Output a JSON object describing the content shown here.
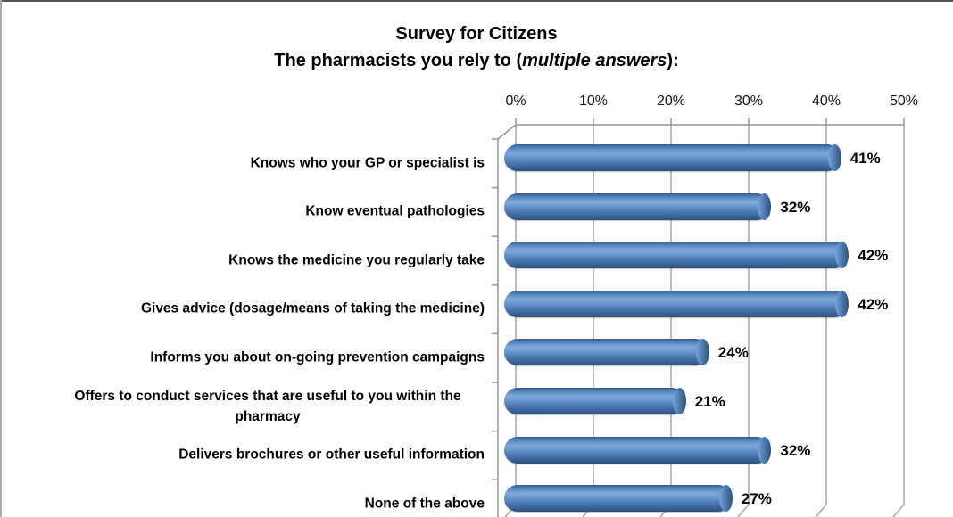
{
  "chart_data": {
    "type": "bar",
    "orientation": "horizontal",
    "style": "3d-cylinder",
    "title_line1": "Survey for Citizens",
    "title_line2": {
      "prefix": "The pharmacists you rely to (",
      "italic": "multiple answers",
      "suffix": "):"
    },
    "categories": [
      "Knows who your GP or specialist is",
      "Know eventual pathologies",
      "Knows the medicine you regularly take",
      "Gives advice (dosage/means of taking the medicine)",
      "Informs you about on-going prevention campaigns",
      "Offers to conduct services that are useful to you within the pharmacy",
      "Delivers brochures or other useful information",
      "None of the above"
    ],
    "values": [
      41,
      32,
      42,
      42,
      24,
      21,
      32,
      27
    ],
    "value_labels": [
      "41%",
      "32%",
      "42%",
      "42%",
      "24%",
      "21%",
      "32%",
      "27%"
    ],
    "axis_ticks": [
      "0%",
      "10%",
      "20%",
      "30%",
      "40%",
      "50%"
    ],
    "xlim": [
      0,
      50
    ],
    "axis_position": "top",
    "grid": true,
    "legend": "none",
    "xlabel": "",
    "ylabel": "",
    "colors": {
      "bar": "#4f81bd",
      "bar_light": "#80a9da",
      "bar_dark": "#2d5078",
      "gridline": "#a6a6a6",
      "frame": "#969696",
      "text": "#000000"
    }
  }
}
